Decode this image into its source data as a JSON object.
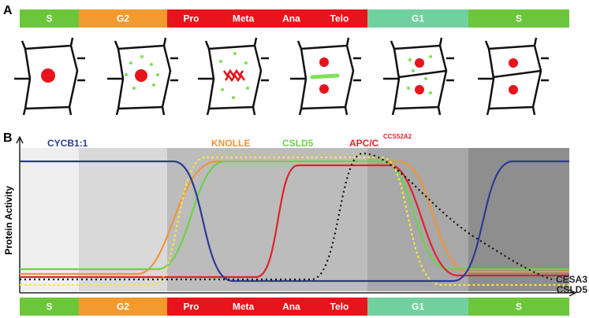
{
  "panel_a": {
    "label": "A"
  },
  "panel_b": {
    "label": "B",
    "y_axis_label": "Protein Activity",
    "curves": [
      {
        "label": "CYCB1:1",
        "color": "#2b3a97"
      },
      {
        "label": "KNOLLE",
        "color": "#f0943a"
      },
      {
        "label": "CSLD5",
        "color": "#6cd24a"
      },
      {
        "label": "APC/C",
        "superscript": "CCS52A2",
        "color": "#e0232a"
      }
    ],
    "end_labels": [
      "CESA3",
      "CSLD5"
    ]
  },
  "phases": [
    {
      "labels": [
        "S"
      ],
      "color": "#6cc63c"
    },
    {
      "labels": [
        "G2"
      ],
      "color": "#f29a2e"
    },
    {
      "labels": [
        "Pro",
        "Meta",
        "Ana",
        "Telo"
      ],
      "color": "#e8141b"
    },
    {
      "labels": [
        "G1"
      ],
      "color": "#72d0a0"
    },
    {
      "labels": [
        "S"
      ],
      "color": "#6cc63c"
    }
  ]
}
